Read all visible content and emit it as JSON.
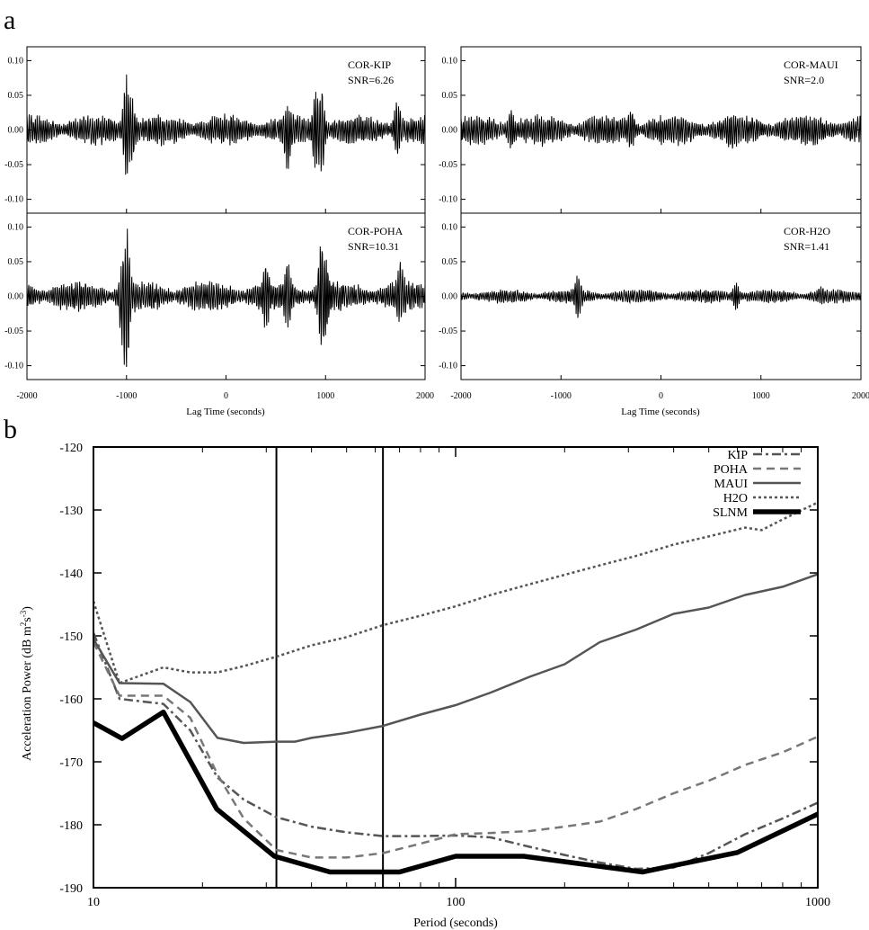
{
  "figure": {
    "panel_a_letter": "a",
    "panel_b_letter": "b"
  },
  "chart_data": [
    {
      "type": "line",
      "panel": "a",
      "title": "",
      "xlabel": "Lag Time (seconds)",
      "xlim": [
        -2000,
        2000
      ],
      "x_ticks": [
        -2000,
        -1000,
        0,
        1000,
        2000
      ],
      "ylim": [
        -0.12,
        0.12
      ],
      "y_ticks": [
        "0.10",
        "0.05",
        "0.00",
        "-0.05",
        "-0.10"
      ],
      "subplots": [
        {
          "id": "kip",
          "label": "COR-KIP",
          "snr": "SNR=6.26",
          "amp": 0.022,
          "seed": 11,
          "bursts": [
            [
              -1000,
              0.085,
              0.071
            ],
            [
              -950,
              0.05,
              0.05
            ],
            [
              900,
              0.055,
              0.06
            ],
            [
              960,
              0.06,
              0.065
            ],
            [
              620,
              0.035,
              0.06
            ],
            [
              1720,
              0.045,
              0.035
            ]
          ]
        },
        {
          "id": "maui",
          "label": "COR-MAUI",
          "snr": "SNR=2.0",
          "amp": 0.022,
          "seed": 23,
          "bursts": [
            [
              -1500,
              0.03,
              0.03
            ],
            [
              -300,
              0.03,
              0.03
            ],
            [
              700,
              0.025,
              0.03
            ]
          ]
        },
        {
          "id": "poha",
          "label": "COR-POHA",
          "snr": "SNR=10.31",
          "amp": 0.022,
          "seed": 37,
          "bursts": [
            [
              -1000,
              0.12,
              0.11
            ],
            [
              -1030,
              0.06,
              0.1
            ],
            [
              960,
              0.085,
              0.093
            ],
            [
              1000,
              0.06,
              0.07
            ],
            [
              400,
              0.045,
              0.05
            ],
            [
              620,
              0.05,
              0.045
            ],
            [
              1750,
              0.05,
              0.04
            ]
          ]
        },
        {
          "id": "h2o",
          "label": "COR-H2O",
          "snr": "SNR=1.41",
          "amp": 0.01,
          "seed": 53,
          "bursts": [
            [
              -830,
              0.032,
              0.032
            ],
            [
              750,
              0.02,
              0.02
            ],
            [
              1600,
              0.015,
              0.012
            ]
          ]
        }
      ]
    },
    {
      "type": "line",
      "panel": "b",
      "title": "",
      "xlabel": "Period (seconds)",
      "ylabel": "Acceleration Power (dB m",
      "ylabel_sup1": "2",
      "ylabel_mid": "s",
      "ylabel_sup2": "-3",
      "ylabel_end": ")",
      "xscale": "log",
      "xlim": [
        10,
        1000
      ],
      "x_ticks": [
        "10",
        "100",
        "1000"
      ],
      "ylim": [
        -190,
        -120
      ],
      "y_ticks": [
        "-120",
        "-130",
        "-140",
        "-150",
        "-160",
        "-170",
        "-180",
        "-190"
      ],
      "vlines": [
        32,
        63
      ],
      "legend_position": "top-right",
      "series": [
        {
          "name": "KIP",
          "color": "#555555",
          "style": "dashdot",
          "width": 2.5,
          "x": [
            10,
            11.8,
            15.6,
            18.5,
            22,
            26,
            32,
            40,
            50,
            63,
            80,
            100,
            125,
            160,
            200,
            250,
            315,
            400,
            500,
            630,
            800,
            1000
          ],
          "y": [
            -149.5,
            -160,
            -160.8,
            -165,
            -172.5,
            -176,
            -178.8,
            -180.3,
            -181.2,
            -181.8,
            -181.8,
            -181.7,
            -182,
            -183.5,
            -184.8,
            -186,
            -187,
            -186.8,
            -184.5,
            -181.5,
            -179,
            -176.5
          ]
        },
        {
          "name": "POHA",
          "color": "#777777",
          "style": "dashed",
          "width": 2.5,
          "x": [
            10,
            11.8,
            15.6,
            18.5,
            22,
            26,
            32,
            40,
            50,
            63,
            80,
            100,
            125,
            160,
            200,
            250,
            315,
            400,
            500,
            630,
            800,
            1000
          ],
          "y": [
            -151,
            -159.5,
            -159.5,
            -163,
            -172,
            -179,
            -184,
            -185.2,
            -185.2,
            -184.5,
            -183,
            -181.5,
            -181.3,
            -181,
            -180.3,
            -179.5,
            -177.5,
            -175,
            -173,
            -170.5,
            -168.5,
            -166
          ]
        },
        {
          "name": "MAUI",
          "color": "#555555",
          "style": "solid",
          "width": 2.5,
          "x": [
            10,
            11.8,
            15.6,
            18.5,
            22,
            26,
            32,
            36,
            40,
            50,
            63,
            80,
            100,
            125,
            160,
            200,
            250,
            315,
            400,
            500,
            630,
            800,
            1000
          ],
          "y": [
            -150.5,
            -157.5,
            -157.6,
            -160.5,
            -166.2,
            -167,
            -166.8,
            -166.8,
            -166.2,
            -165.4,
            -164.3,
            -162.5,
            -161,
            -159,
            -156.5,
            -154.5,
            -151,
            -149,
            -146.5,
            -145.5,
            -143.5,
            -142.2,
            -140.2
          ]
        },
        {
          "name": "H2O",
          "color": "#555555",
          "style": "dotted",
          "width": 2.5,
          "x": [
            10,
            11.8,
            15.6,
            18.5,
            22,
            26,
            32,
            40,
            50,
            63,
            80,
            100,
            125,
            160,
            200,
            250,
            315,
            400,
            500,
            630,
            700,
            800,
            1000
          ],
          "y": [
            -144.5,
            -157.5,
            -155,
            -155.8,
            -155.8,
            -154.8,
            -153.3,
            -151.5,
            -150.2,
            -148.3,
            -146.8,
            -145.3,
            -143.5,
            -141.8,
            -140.3,
            -138.8,
            -137.3,
            -135.5,
            -134.2,
            -132.8,
            -133.2,
            -131.5,
            -128.8
          ]
        },
        {
          "name": "SLNM",
          "color": "#000000",
          "style": "solid",
          "width": 5.5,
          "x": [
            10,
            12,
            15.6,
            21.9,
            31.6,
            45,
            70,
            100,
            154,
            328,
            600,
            1000
          ],
          "y": [
            -163.8,
            -166.3,
            -162.1,
            -177.5,
            -185,
            -187.5,
            -187.5,
            -185,
            -185,
            -187.5,
            -184.4,
            -178.3
          ]
        }
      ]
    }
  ]
}
